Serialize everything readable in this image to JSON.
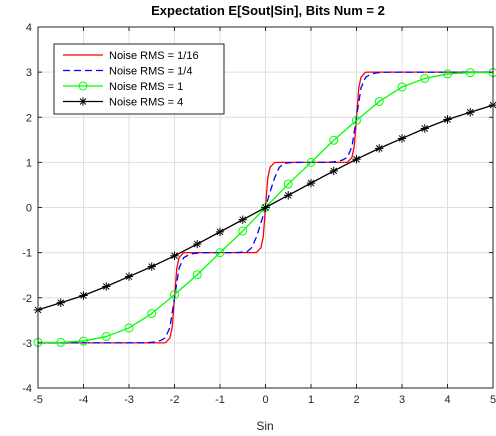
{
  "chart_data": {
    "type": "line",
    "title": "Expectation E[Sout|Sin], Bits Num = 2",
    "xlabel": "Sin",
    "ylabel": "",
    "xlim": [
      -5,
      5
    ],
    "ylim": [
      -4,
      4
    ],
    "xticks": [
      -5,
      -4,
      -3,
      -2,
      -1,
      0,
      1,
      2,
      3,
      4,
      5
    ],
    "yticks": [
      -4,
      -3,
      -2,
      -1,
      0,
      1,
      2,
      3,
      4
    ],
    "xtick_labels": [
      "-5",
      "-4",
      "-3",
      "-2",
      "-1",
      "0",
      "1",
      "2",
      "3",
      "4",
      "5"
    ],
    "ytick_labels": [
      "-4",
      "-3",
      "-2",
      "-1",
      "0",
      "1",
      "2",
      "3",
      "4"
    ],
    "grid": true,
    "legend_position": "top-left",
    "series": [
      {
        "name": "Noise RMS = 1/16",
        "color": "#ff0000",
        "style": "solid",
        "marker": "none",
        "x": [
          -5,
          -2.3,
          -2.2,
          -2.1,
          -2.05,
          -2.0,
          -1.95,
          -1.9,
          -1.8,
          -1.7,
          -0.3,
          -0.2,
          -0.1,
          -0.05,
          0.0,
          0.05,
          0.1,
          0.2,
          0.3,
          1.7,
          1.8,
          1.9,
          1.95,
          2.0,
          2.05,
          2.1,
          2.2,
          2.3,
          5
        ],
        "y": [
          -3,
          -3,
          -2.998,
          -2.89,
          -2.65,
          -2.0,
          -1.35,
          -1.11,
          -1.002,
          -1,
          -1,
          -0.998,
          -0.89,
          -0.65,
          0.0,
          0.65,
          0.89,
          0.998,
          1,
          1,
          1.002,
          1.11,
          1.35,
          2.0,
          2.65,
          2.89,
          2.998,
          3,
          3
        ]
      },
      {
        "name": "Noise RMS = 1/4",
        "color": "#0000ff",
        "style": "dashed",
        "marker": "none",
        "x": [
          -5,
          -2.8,
          -2.6,
          -2.4,
          -2.3,
          -2.2,
          -2.1,
          -2.0,
          -1.9,
          -1.8,
          -1.7,
          -1.6,
          -1.4,
          -1.2,
          -0.8,
          -0.6,
          -0.4,
          -0.3,
          -0.2,
          -0.1,
          0.0,
          0.1,
          0.2,
          0.3,
          0.4,
          0.6,
          0.8,
          1.2,
          1.4,
          1.6,
          1.7,
          1.8,
          1.9,
          2.0,
          2.1,
          2.2,
          2.3,
          2.4,
          2.6,
          2.8,
          5
        ],
        "y": [
          -3,
          -3,
          -2.998,
          -2.977,
          -2.945,
          -2.885,
          -2.655,
          -2.0,
          -1.345,
          -1.115,
          -1.055,
          -1.023,
          -1.002,
          -1.0,
          -1.0,
          -0.998,
          -0.977,
          -0.885,
          -0.655,
          -0.345,
          0.0,
          0.345,
          0.655,
          0.885,
          0.977,
          0.998,
          1.0,
          1.0,
          1.002,
          1.023,
          1.055,
          1.115,
          1.345,
          2.0,
          2.655,
          2.885,
          2.945,
          2.977,
          2.998,
          3,
          3
        ]
      },
      {
        "name": "Noise RMS = 1",
        "color": "#00ff00",
        "style": "solid",
        "marker": "circle",
        "x": [
          -5,
          -4.5,
          -4,
          -3.5,
          -3,
          -2.5,
          -2,
          -1.5,
          -1,
          -0.5,
          0,
          0.5,
          1,
          1.5,
          2,
          2.5,
          3,
          3.5,
          4,
          4.5,
          5
        ],
        "y": [
          -2.99,
          -2.99,
          -2.96,
          -2.86,
          -2.67,
          -2.35,
          -1.93,
          -1.49,
          -1.0,
          -0.52,
          0.0,
          0.52,
          1.0,
          1.49,
          1.93,
          2.35,
          2.67,
          2.86,
          2.96,
          2.99,
          2.99
        ]
      },
      {
        "name": "Noise RMS = 4",
        "color": "#000000",
        "style": "solid",
        "marker": "asterisk",
        "x": [
          -5,
          -4.5,
          -4,
          -3.5,
          -3,
          -2.5,
          -2,
          -1.5,
          -1,
          -0.5,
          0,
          0.5,
          1,
          1.5,
          2,
          2.5,
          3,
          3.5,
          4,
          4.5,
          5
        ],
        "y": [
          -2.27,
          -2.11,
          -1.95,
          -1.75,
          -1.53,
          -1.31,
          -1.07,
          -0.81,
          -0.54,
          -0.27,
          0.0,
          0.27,
          0.54,
          0.81,
          1.07,
          1.31,
          1.53,
          1.75,
          1.95,
          2.11,
          2.27
        ]
      }
    ]
  }
}
